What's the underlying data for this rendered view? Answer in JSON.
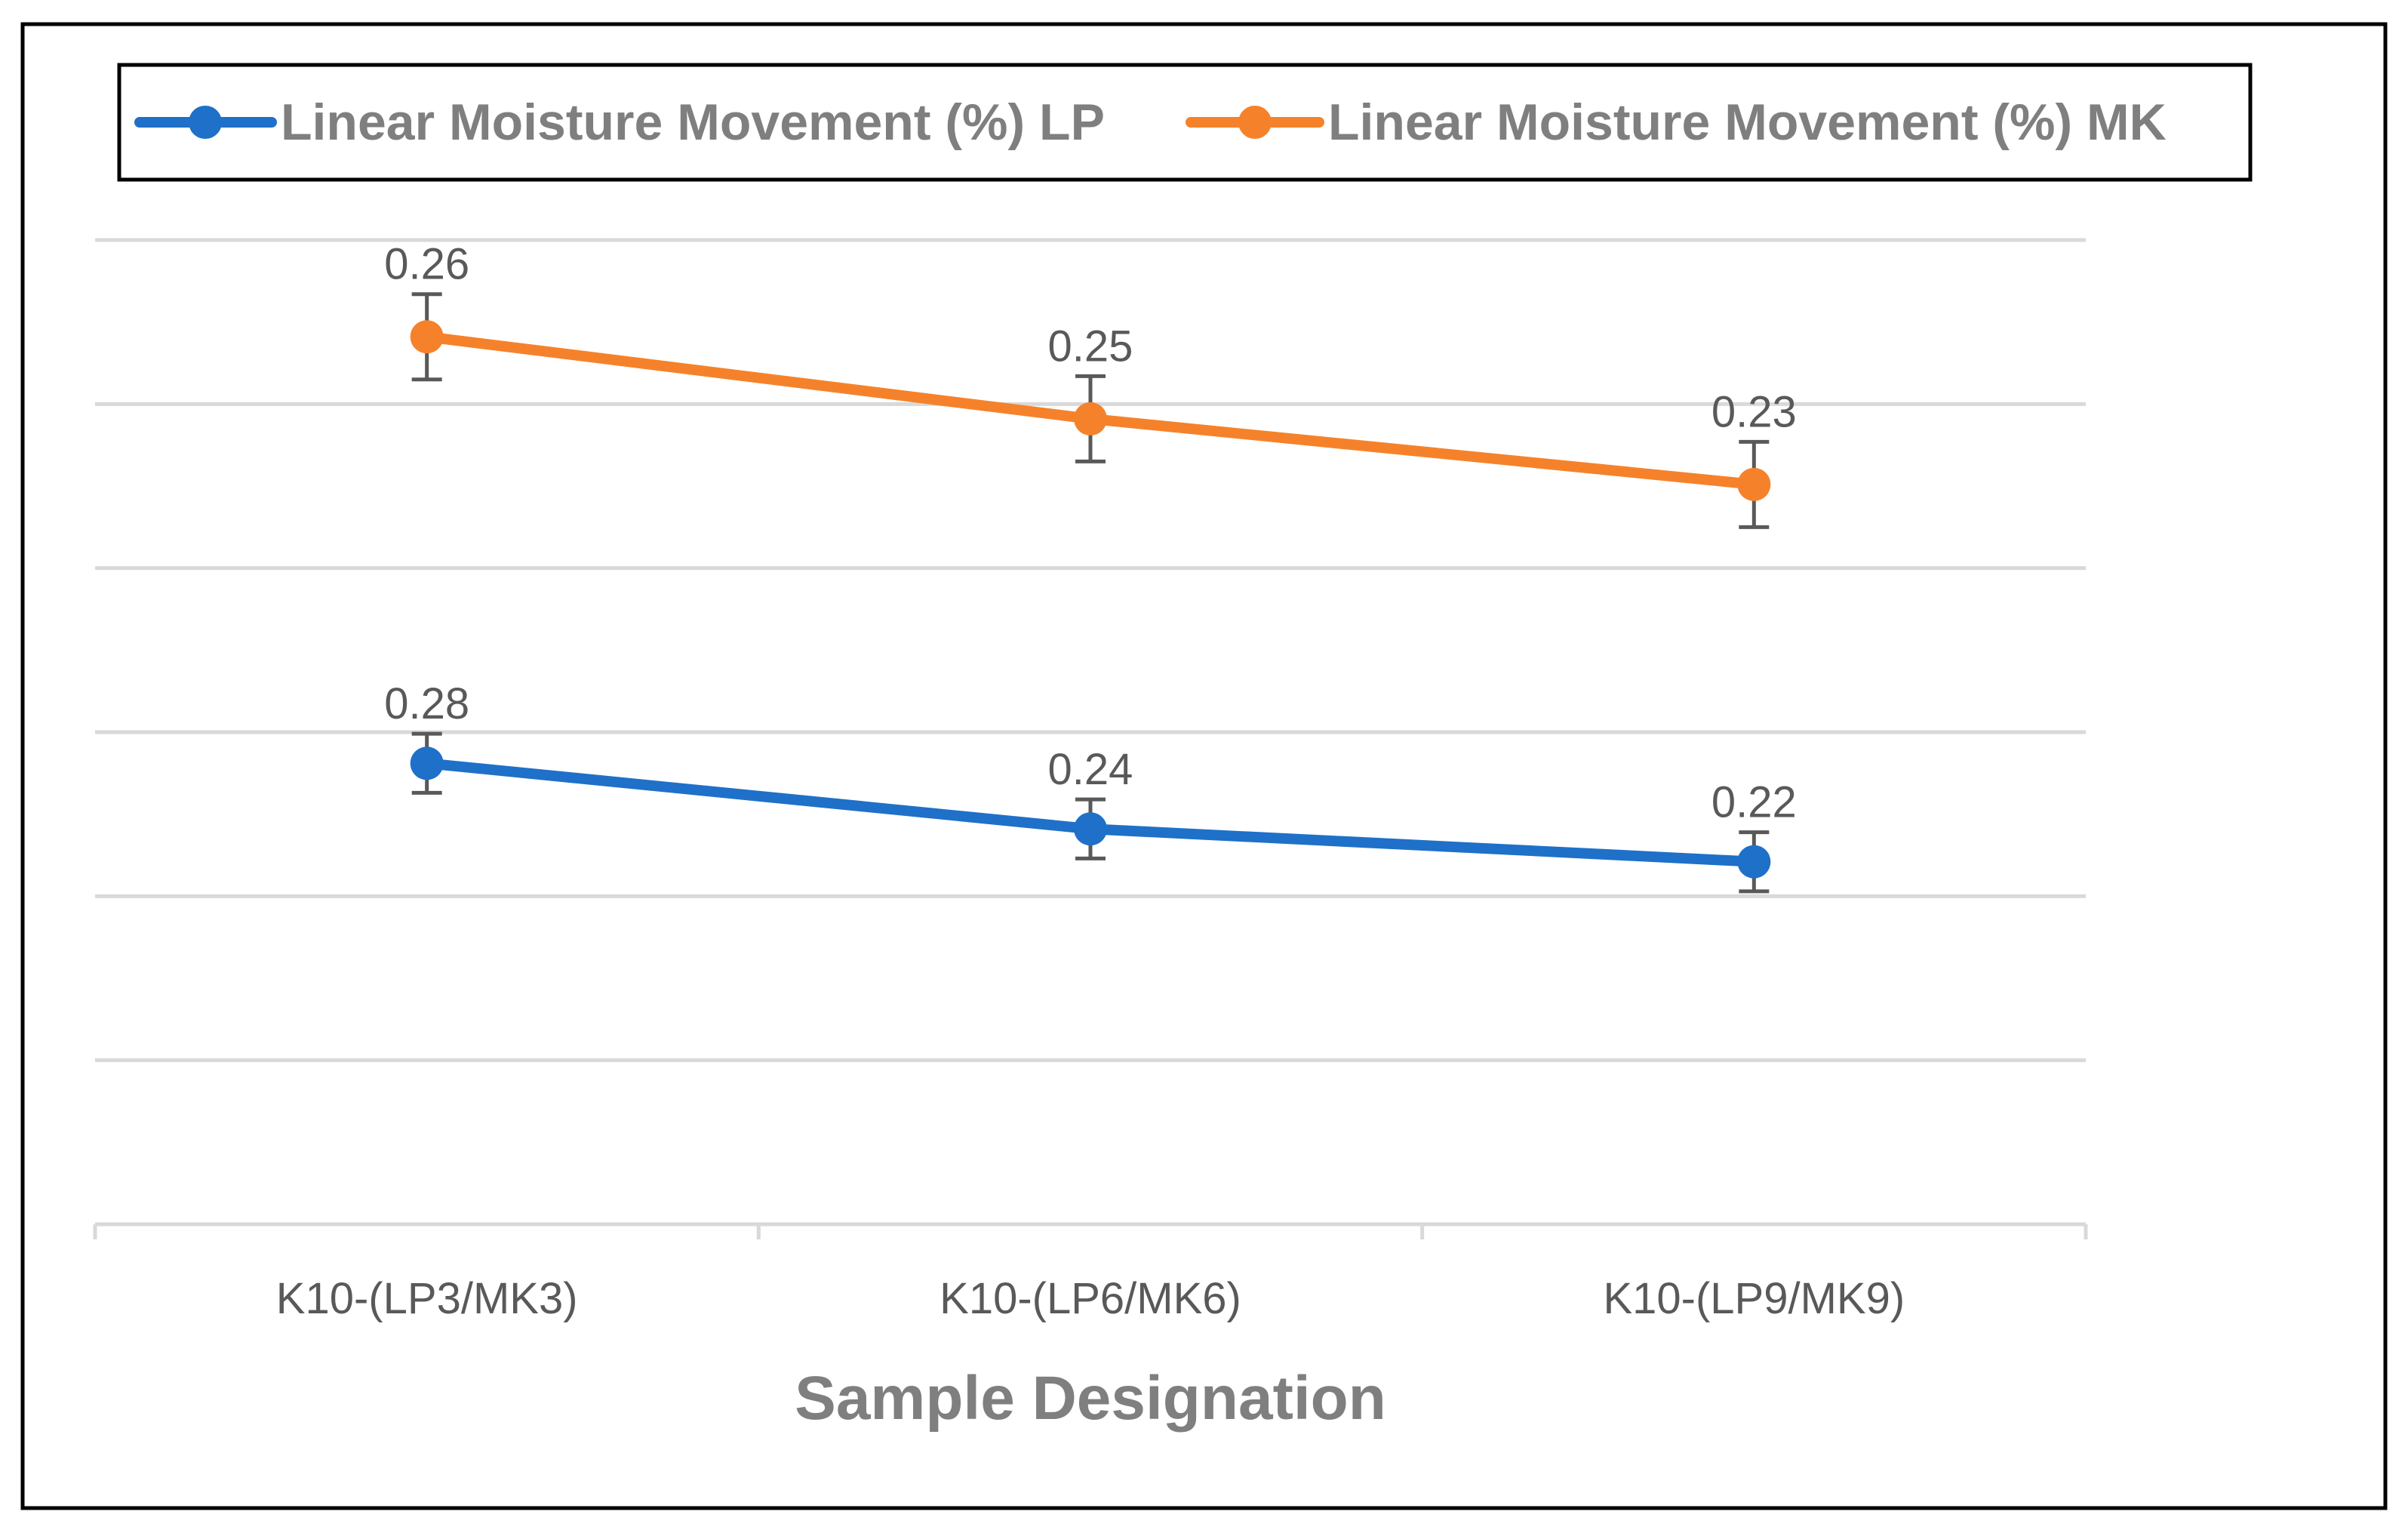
{
  "chart_data": {
    "type": "line",
    "title": "",
    "xlabel": "Sample Designation",
    "ylabel": "",
    "categories": [
      "K10-(LP3/MK3)",
      "K10-(LP6/MK6)",
      "K10-(LP9/MK9)"
    ],
    "series": [
      {
        "name": "Linear Moisture Movement (%) LP",
        "color": "#1F70C8",
        "plot_positions": [
          2.81,
          2.41,
          2.21
        ],
        "data_labels": [
          "0.28",
          "0.24",
          "0.22"
        ],
        "error": 0.18
      },
      {
        "name": "Linear Moisture Movement (%) MK",
        "color": "#F5822A",
        "plot_positions": [
          5.41,
          4.91,
          4.51
        ],
        "data_labels": [
          "0.26",
          "0.25",
          "0.23"
        ],
        "error": 0.26
      }
    ],
    "ylim": [
      0,
      6
    ],
    "gridlines": [
      1,
      2,
      3,
      4,
      5,
      6
    ],
    "grid": true,
    "legend_position": "top",
    "colors": {
      "grid": "#D9D9D9",
      "axis": "#D9D9D9",
      "error_bar": "#595959",
      "text": "#595959",
      "axis_title": "#7F7F7F",
      "legend_text": "#7F7F7F",
      "frame": "#000000"
    }
  }
}
